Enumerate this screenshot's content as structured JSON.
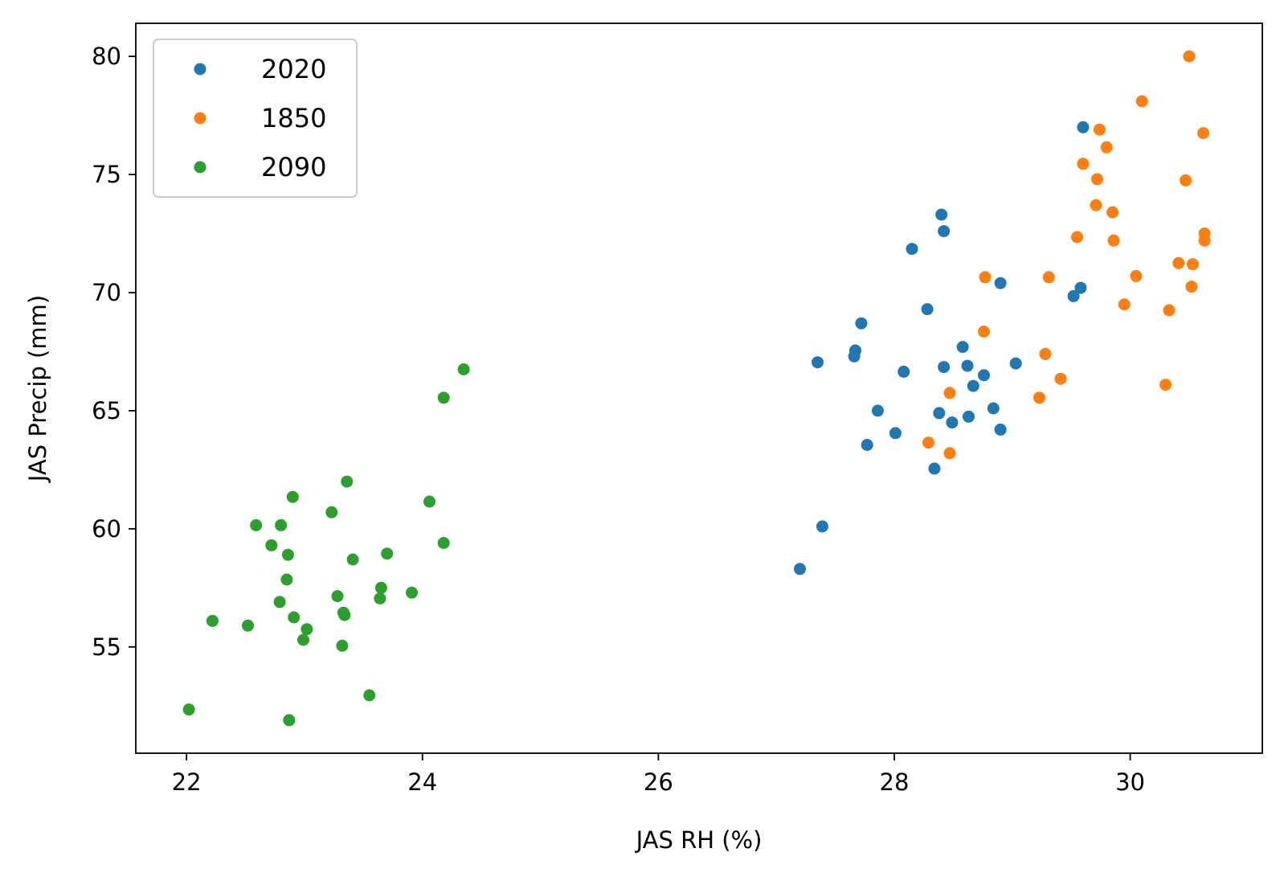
{
  "chart_data": {
    "type": "scatter",
    "title": "",
    "xlabel": "JAS RH (%)",
    "ylabel": "JAS Precip (mm)",
    "xlim": [
      21.57,
      31.12
    ],
    "ylim": [
      50.5,
      81.4
    ],
    "xticks": [
      22,
      24,
      26,
      28,
      30
    ],
    "yticks": [
      55,
      60,
      65,
      70,
      75,
      80
    ],
    "grid": false,
    "legend_position": "top-left",
    "series": [
      {
        "name": "2020",
        "color": "#1f77b4",
        "points": [
          [
            29.6,
            77.0
          ],
          [
            28.4,
            73.3
          ],
          [
            28.42,
            72.6
          ],
          [
            28.15,
            71.85
          ],
          [
            28.9,
            70.4
          ],
          [
            29.58,
            70.2
          ],
          [
            29.52,
            69.85
          ],
          [
            28.28,
            69.3
          ],
          [
            27.72,
            68.7
          ],
          [
            28.58,
            67.7
          ],
          [
            27.67,
            67.55
          ],
          [
            27.66,
            67.3
          ],
          [
            27.35,
            67.05
          ],
          [
            29.03,
            67.0
          ],
          [
            28.42,
            66.85
          ],
          [
            28.62,
            66.9
          ],
          [
            28.08,
            66.65
          ],
          [
            28.76,
            66.5
          ],
          [
            28.67,
            66.05
          ],
          [
            28.84,
            65.1
          ],
          [
            27.86,
            65.0
          ],
          [
            28.38,
            64.9
          ],
          [
            28.63,
            64.75
          ],
          [
            28.49,
            64.5
          ],
          [
            28.9,
            64.2
          ],
          [
            28.01,
            64.05
          ],
          [
            27.77,
            63.55
          ],
          [
            28.34,
            62.55
          ],
          [
            27.39,
            60.1
          ],
          [
            27.2,
            58.3
          ]
        ]
      },
      {
        "name": "1850",
        "color": "#ff7f0e",
        "points": [
          [
            30.5,
            80.0
          ],
          [
            30.1,
            78.1
          ],
          [
            29.74,
            76.9
          ],
          [
            30.62,
            76.75
          ],
          [
            29.8,
            76.15
          ],
          [
            29.6,
            75.45
          ],
          [
            29.72,
            74.8
          ],
          [
            30.47,
            74.75
          ],
          [
            29.71,
            73.7
          ],
          [
            29.85,
            73.4
          ],
          [
            30.63,
            72.5
          ],
          [
            29.55,
            72.35
          ],
          [
            29.86,
            72.2
          ],
          [
            30.63,
            72.2
          ],
          [
            30.41,
            71.25
          ],
          [
            30.53,
            71.2
          ],
          [
            28.77,
            70.65
          ],
          [
            29.31,
            70.65
          ],
          [
            30.05,
            70.7
          ],
          [
            30.52,
            70.25
          ],
          [
            29.95,
            69.5
          ],
          [
            30.33,
            69.25
          ],
          [
            28.76,
            68.35
          ],
          [
            29.28,
            67.4
          ],
          [
            29.41,
            66.35
          ],
          [
            30.3,
            66.1
          ],
          [
            28.47,
            65.75
          ],
          [
            29.23,
            65.55
          ],
          [
            28.29,
            63.65
          ],
          [
            28.47,
            63.2
          ]
        ]
      },
      {
        "name": "2090",
        "color": "#2ca02c",
        "points": [
          [
            24.35,
            66.75
          ],
          [
            24.18,
            65.55
          ],
          [
            23.36,
            62.0
          ],
          [
            22.9,
            61.35
          ],
          [
            24.06,
            61.15
          ],
          [
            23.23,
            60.7
          ],
          [
            22.59,
            60.15
          ],
          [
            22.8,
            60.15
          ],
          [
            24.18,
            59.4
          ],
          [
            22.72,
            59.3
          ],
          [
            23.7,
            58.95
          ],
          [
            22.86,
            58.9
          ],
          [
            23.41,
            58.7
          ],
          [
            22.85,
            57.85
          ],
          [
            23.65,
            57.5
          ],
          [
            23.91,
            57.3
          ],
          [
            23.28,
            57.15
          ],
          [
            23.64,
            57.05
          ],
          [
            22.79,
            56.9
          ],
          [
            23.33,
            56.45
          ],
          [
            23.34,
            56.35
          ],
          [
            22.91,
            56.25
          ],
          [
            22.22,
            56.1
          ],
          [
            22.52,
            55.9
          ],
          [
            23.02,
            55.75
          ],
          [
            22.99,
            55.3
          ],
          [
            23.32,
            55.05
          ],
          [
            23.55,
            52.95
          ],
          [
            22.02,
            52.35
          ],
          [
            22.87,
            51.9
          ]
        ]
      }
    ]
  }
}
